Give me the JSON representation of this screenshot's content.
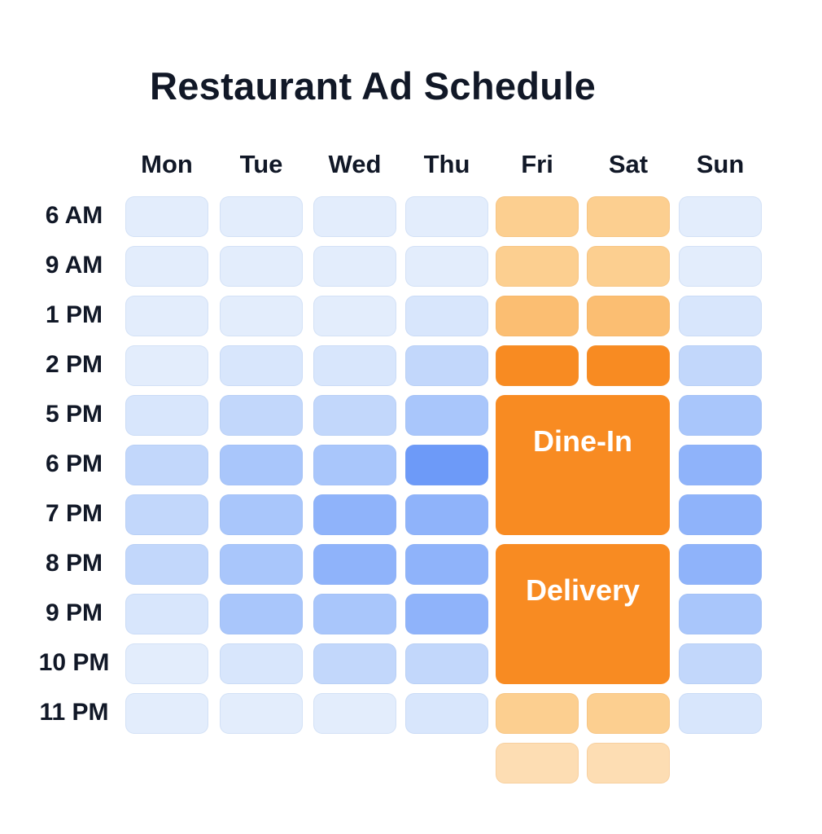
{
  "chart_data": {
    "type": "heatmap",
    "title": "Restaurant Ad Schedule",
    "columns": [
      "Mon",
      "Tue",
      "Wed",
      "Thu",
      "Fri",
      "Sat",
      "Sun"
    ],
    "rows": [
      "6 AM",
      "9 AM",
      "1 PM",
      "2 PM",
      "5 PM",
      "6 PM",
      "7 PM",
      "8 PM",
      "9 PM",
      "10 PM",
      "11 PM"
    ],
    "intensity": [
      [
        1,
        1,
        1,
        1,
        3,
        3,
        1
      ],
      [
        1,
        1,
        1,
        1,
        3,
        3,
        1
      ],
      [
        1,
        1,
        1,
        2,
        4,
        4,
        2
      ],
      [
        1,
        2,
        2,
        3,
        5,
        5,
        3
      ],
      [
        2,
        3,
        3,
        4,
        null,
        null,
        4
      ],
      [
        3,
        4,
        4,
        6,
        null,
        null,
        5
      ],
      [
        3,
        4,
        5,
        5,
        null,
        null,
        5
      ],
      [
        3,
        4,
        5,
        5,
        null,
        null,
        5
      ],
      [
        2,
        4,
        4,
        5,
        null,
        null,
        4
      ],
      [
        1,
        2,
        3,
        3,
        null,
        null,
        3
      ],
      [
        1,
        1,
        1,
        2,
        3,
        3,
        2
      ]
    ],
    "extra_row": [
      null,
      null,
      null,
      null,
      2,
      2,
      null
    ],
    "blocks": [
      {
        "label": "Dine-In",
        "columns": [
          "Fri",
          "Sat"
        ],
        "rows": [
          "5 PM",
          "6 PM",
          "7 PM"
        ]
      },
      {
        "label": "Delivery",
        "columns": [
          "Fri",
          "Sat"
        ],
        "rows": [
          "8 PM",
          "9 PM",
          "10 PM"
        ]
      }
    ],
    "cool_palette": [
      "#edf3fd",
      "#e3edfc",
      "#d8e6fc",
      "#c2d7fb",
      "#a9c6fb",
      "#8fb3fa",
      "#6d9af8"
    ],
    "warm_palette": [
      "#fff3e4",
      "#fde7c9",
      "#fdddb3",
      "#fccf90",
      "#fbbe72",
      "#f88b22"
    ],
    "block_color": "#f88b22"
  }
}
